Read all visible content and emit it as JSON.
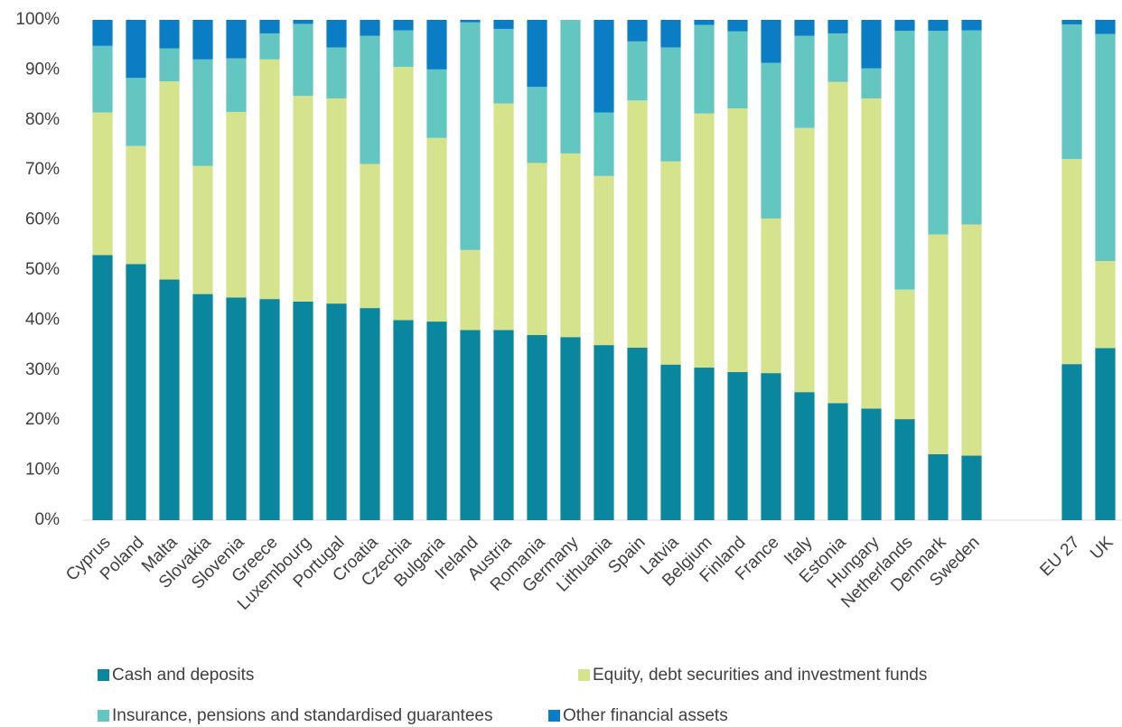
{
  "chart_data": {
    "type": "stacked_bar",
    "categories": [
      "Cyprus",
      "Poland",
      "Malta",
      "Slovakia",
      "Slovenia",
      "Greece",
      "Luxembourg",
      "Portugal",
      "Croatia",
      "Czechia",
      "Bulgaria",
      "Ireland",
      "Austria",
      "Romania",
      "Germany",
      "Lithuania",
      "Spain",
      "Latvia",
      "Belgium",
      "Finland",
      "France",
      "Italy",
      "Estonia",
      "Hungary",
      "Netherlands",
      "Denmark",
      "Sweden",
      null,
      null,
      "EU 27",
      "UK"
    ],
    "series": [
      {
        "name": "Cash and deposits",
        "color": "#0a879f",
        "values": [
          53.0,
          51.2,
          48.1,
          45.2,
          44.5,
          44.2,
          43.7,
          43.3,
          42.4,
          40.0,
          39.7,
          38.0,
          38.0,
          37.0,
          36.6,
          35.0,
          34.5,
          31.1,
          30.5,
          29.6,
          29.4,
          25.6,
          23.4,
          22.3,
          20.2,
          13.2,
          12.9,
          null,
          null,
          31.2,
          34.4
        ]
      },
      {
        "name": "Equity, debt securities and investment funds",
        "color": "#d4e38c",
        "values": [
          28.5,
          23.6,
          39.6,
          25.6,
          37.1,
          47.9,
          41.1,
          41.0,
          28.8,
          50.6,
          36.7,
          16.0,
          45.3,
          34.4,
          36.7,
          33.8,
          49.4,
          40.6,
          50.8,
          52.7,
          30.9,
          52.8,
          64.2,
          62.0,
          25.9,
          43.9,
          46.2,
          null,
          null,
          41.0,
          17.4
        ]
      },
      {
        "name": "Insurance, pensions and standardised guarantees",
        "color": "#63c6c1",
        "values": [
          13.3,
          13.6,
          6.6,
          21.3,
          10.7,
          5.2,
          14.4,
          10.2,
          25.6,
          7.3,
          13.7,
          45.5,
          14.9,
          15.2,
          26.7,
          12.7,
          11.8,
          22.8,
          17.7,
          15.4,
          31.1,
          18.4,
          9.7,
          6.0,
          51.7,
          40.7,
          38.8,
          null,
          null,
          26.9,
          45.4
        ]
      },
      {
        "name": "Other financial assets",
        "color": "#0b7dc5",
        "values": [
          5.2,
          11.6,
          5.7,
          7.9,
          7.7,
          2.7,
          0.8,
          5.5,
          3.2,
          2.1,
          9.9,
          0.5,
          1.8,
          13.4,
          0,
          18.5,
          4.3,
          5.5,
          1.0,
          2.3,
          8.6,
          3.2,
          2.7,
          9.7,
          2.2,
          2.2,
          2.1,
          null,
          null,
          0.9,
          2.8
        ]
      }
    ],
    "ylim": [
      0,
      100
    ],
    "yticks": [
      {
        "value": 0,
        "label": "0%"
      },
      {
        "value": 10,
        "label": "10%"
      },
      {
        "value": 20,
        "label": "20%"
      },
      {
        "value": 30,
        "label": "30%"
      },
      {
        "value": 40,
        "label": "40%"
      },
      {
        "value": 50,
        "label": "50%"
      },
      {
        "value": 60,
        "label": "60%"
      },
      {
        "value": 70,
        "label": "70%"
      },
      {
        "value": 80,
        "label": "80%"
      },
      {
        "value": 90,
        "label": "90%"
      },
      {
        "value": 100,
        "label": "100%"
      }
    ]
  }
}
